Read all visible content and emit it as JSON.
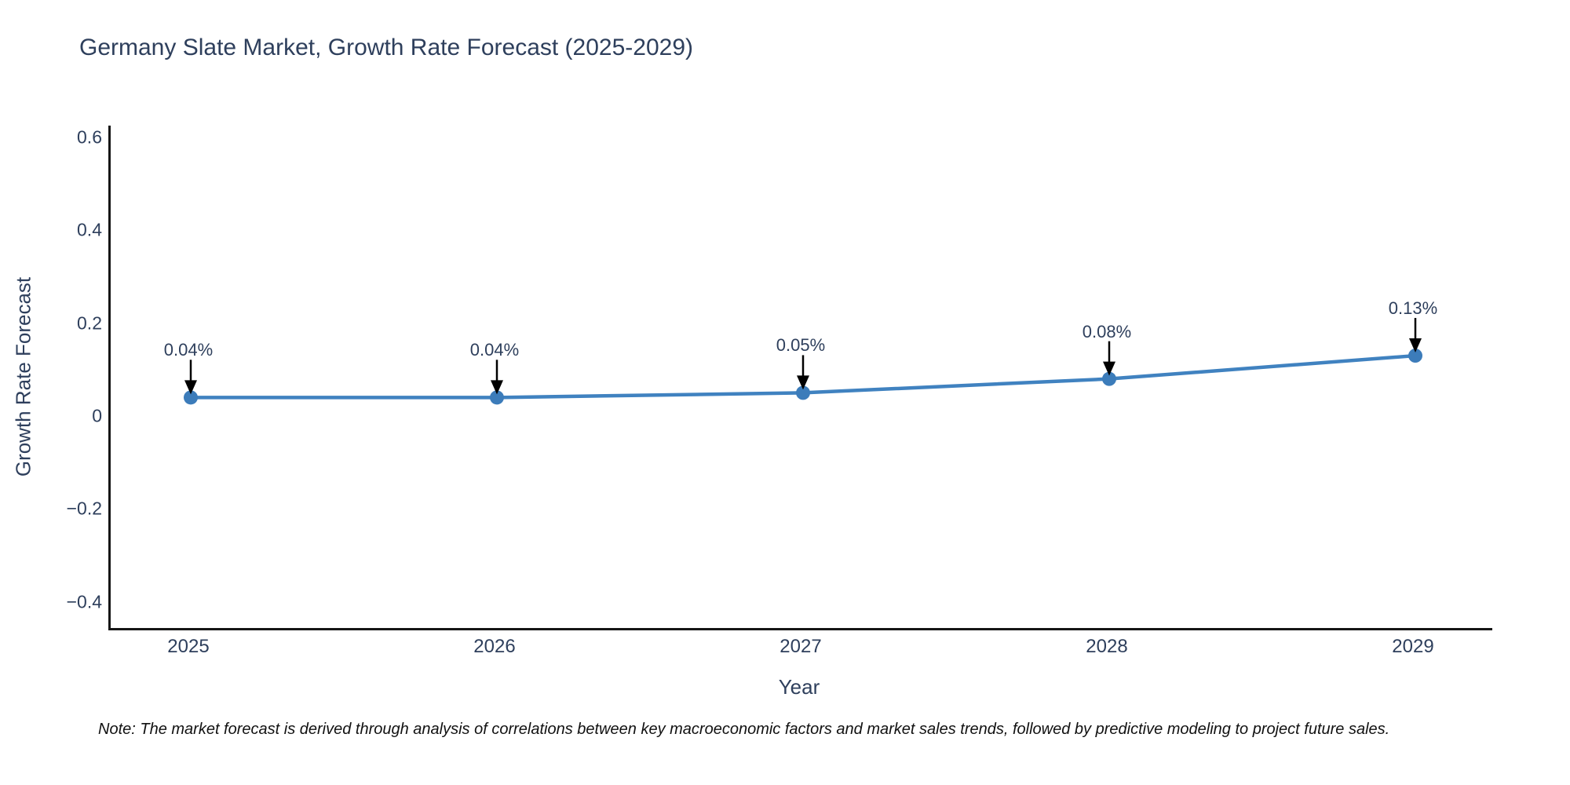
{
  "chart_data": {
    "type": "line",
    "title": "Germany Slate Market, Growth Rate Forecast (2025-2029)",
    "xlabel": "Year",
    "ylabel": "Growth Rate Forecast",
    "x": [
      2025,
      2026,
      2027,
      2028,
      2029
    ],
    "xtick_labels": [
      "2025",
      "2026",
      "2027",
      "2028",
      "2029"
    ],
    "series": [
      {
        "name": "Growth Rate Forecast",
        "values": [
          0.04,
          0.04,
          0.05,
          0.08,
          0.13
        ]
      }
    ],
    "point_labels": [
      "0.04%",
      "0.04%",
      "0.05%",
      "0.08%",
      "0.13%"
    ],
    "yticks": [
      0.6,
      0.4,
      0.2,
      0,
      -0.2,
      -0.4
    ],
    "ytick_labels": [
      "0.6",
      "0.4",
      "0.2",
      "0",
      "−0.2",
      "−0.4"
    ],
    "ylim": [
      -0.456,
      0.625
    ],
    "grid": false,
    "legend": "none",
    "colors": {
      "line": "#4082c0",
      "marker": "#3c7cba",
      "arrow": "#000000",
      "text": "#2e3f5c",
      "axis": "#161616"
    }
  },
  "note": "Note: The market forecast is derived through analysis of correlations between key macroeconomic factors and market sales trends, followed by predictive modeling to project future sales."
}
